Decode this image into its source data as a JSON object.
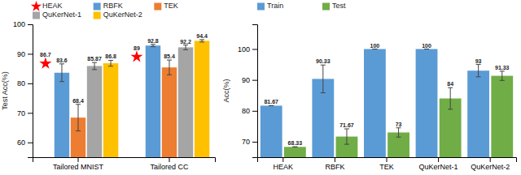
{
  "chart_data": [
    {
      "type": "bar",
      "categories": [
        "Tailored MNIST",
        "Tailored CC"
      ],
      "series": [
        {
          "name": "HEAK",
          "type": "scatter",
          "marker": "star",
          "color": "red",
          "values": [
            86.7,
            89.0
          ]
        },
        {
          "name": "RBFK",
          "color": "#5b9bd5",
          "values": [
            83.6,
            92.8
          ],
          "errors": [
            3.0,
            0.4
          ]
        },
        {
          "name": "TEK",
          "color": "#ed7d31",
          "values": [
            68.4,
            85.4
          ],
          "errors": [
            4.5,
            2.5
          ]
        },
        {
          "name": "QuKerNet-1",
          "color": "#a5a5a5",
          "values": [
            85.87,
            92.2
          ],
          "errors": [
            1.2,
            0.8
          ]
        },
        {
          "name": "QuKerNet-2",
          "color": "#ffc000",
          "values": [
            86.8,
            94.4
          ],
          "errors": [
            1.0,
            0.4
          ]
        }
      ],
      "ylim": [
        55,
        100
      ],
      "yticks": [
        60,
        70,
        80,
        90,
        100
      ],
      "ylabel": "Test Acc(%)",
      "data_labels": true,
      "grid": false,
      "legend": "top"
    },
    {
      "type": "bar",
      "categories": [
        "HEAK",
        "RBFK",
        "TEK",
        "QuKerNet-1",
        "QuKerNet-2"
      ],
      "series": [
        {
          "name": "Train",
          "color": "#5b9bd5",
          "values": [
            81.67,
            90.33,
            100.0,
            100.0,
            93.0
          ],
          "errors": [
            0,
            4.5,
            0,
            0,
            2.0
          ]
        },
        {
          "name": "Test",
          "color": "#70ad47",
          "values": [
            68.33,
            71.67,
            73.0,
            84.0,
            91.33
          ],
          "errors": [
            0,
            2.5,
            1.5,
            3.5,
            1.5
          ]
        }
      ],
      "ylim": [
        65,
        108
      ],
      "yticks": [
        70,
        80,
        90,
        100
      ],
      "ylabel": "Acc(%)",
      "data_labels": true,
      "grid": false,
      "legend": "top"
    }
  ]
}
